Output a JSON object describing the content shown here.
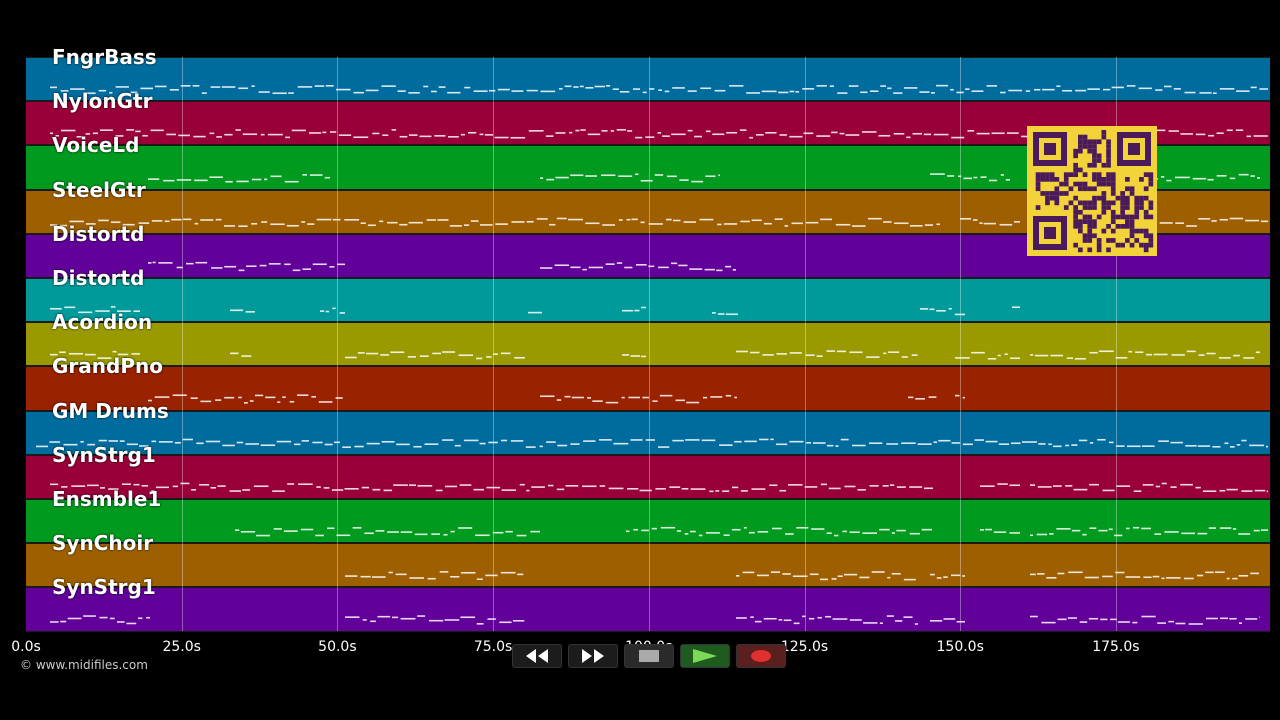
{
  "tracks": [
    {
      "name": "FngrBass",
      "color": "#006c9e"
    },
    {
      "name": "NylonGtr",
      "color": "#99003a"
    },
    {
      "name": "VoiceLd",
      "color": "#009a1e"
    },
    {
      "name": "SteelGtr",
      "color": "#9e5f00"
    },
    {
      "name": "Distortd",
      "color": "#62009a"
    },
    {
      "name": "Distortd",
      "color": "#009a9a"
    },
    {
      "name": "Acordion",
      "color": "#9a9a00"
    },
    {
      "name": "GrandPno",
      "color": "#992200"
    },
    {
      "name": "GM Drums",
      "color": "#006c9e"
    },
    {
      "name": "SynStrg1",
      "color": "#99003a"
    },
    {
      "name": "Ensmble1",
      "color": "#009a1e"
    },
    {
      "name": "SynChoir",
      "color": "#9e5f00"
    },
    {
      "name": "SynStrg1",
      "color": "#62009a"
    }
  ],
  "time_axis": {
    "ticks": [
      "0.0s",
      "25.0s",
      "50.0s",
      "75.0s",
      "100.0s",
      "125.0s",
      "150.0s",
      "175.0s"
    ]
  },
  "copyright": "© www.midifiles.com",
  "transport": {
    "buttons": [
      {
        "name": "rewind-button",
        "icon": "rewind-icon"
      },
      {
        "name": "fast-forward-button",
        "icon": "fast-forward-icon"
      },
      {
        "name": "stop-button",
        "icon": "stop-icon"
      },
      {
        "name": "play-button",
        "icon": "play-icon"
      },
      {
        "name": "record-button",
        "icon": "record-icon"
      }
    ]
  },
  "qr_code": {
    "icon": "qr-code-icon",
    "color": "#f3d33a"
  }
}
